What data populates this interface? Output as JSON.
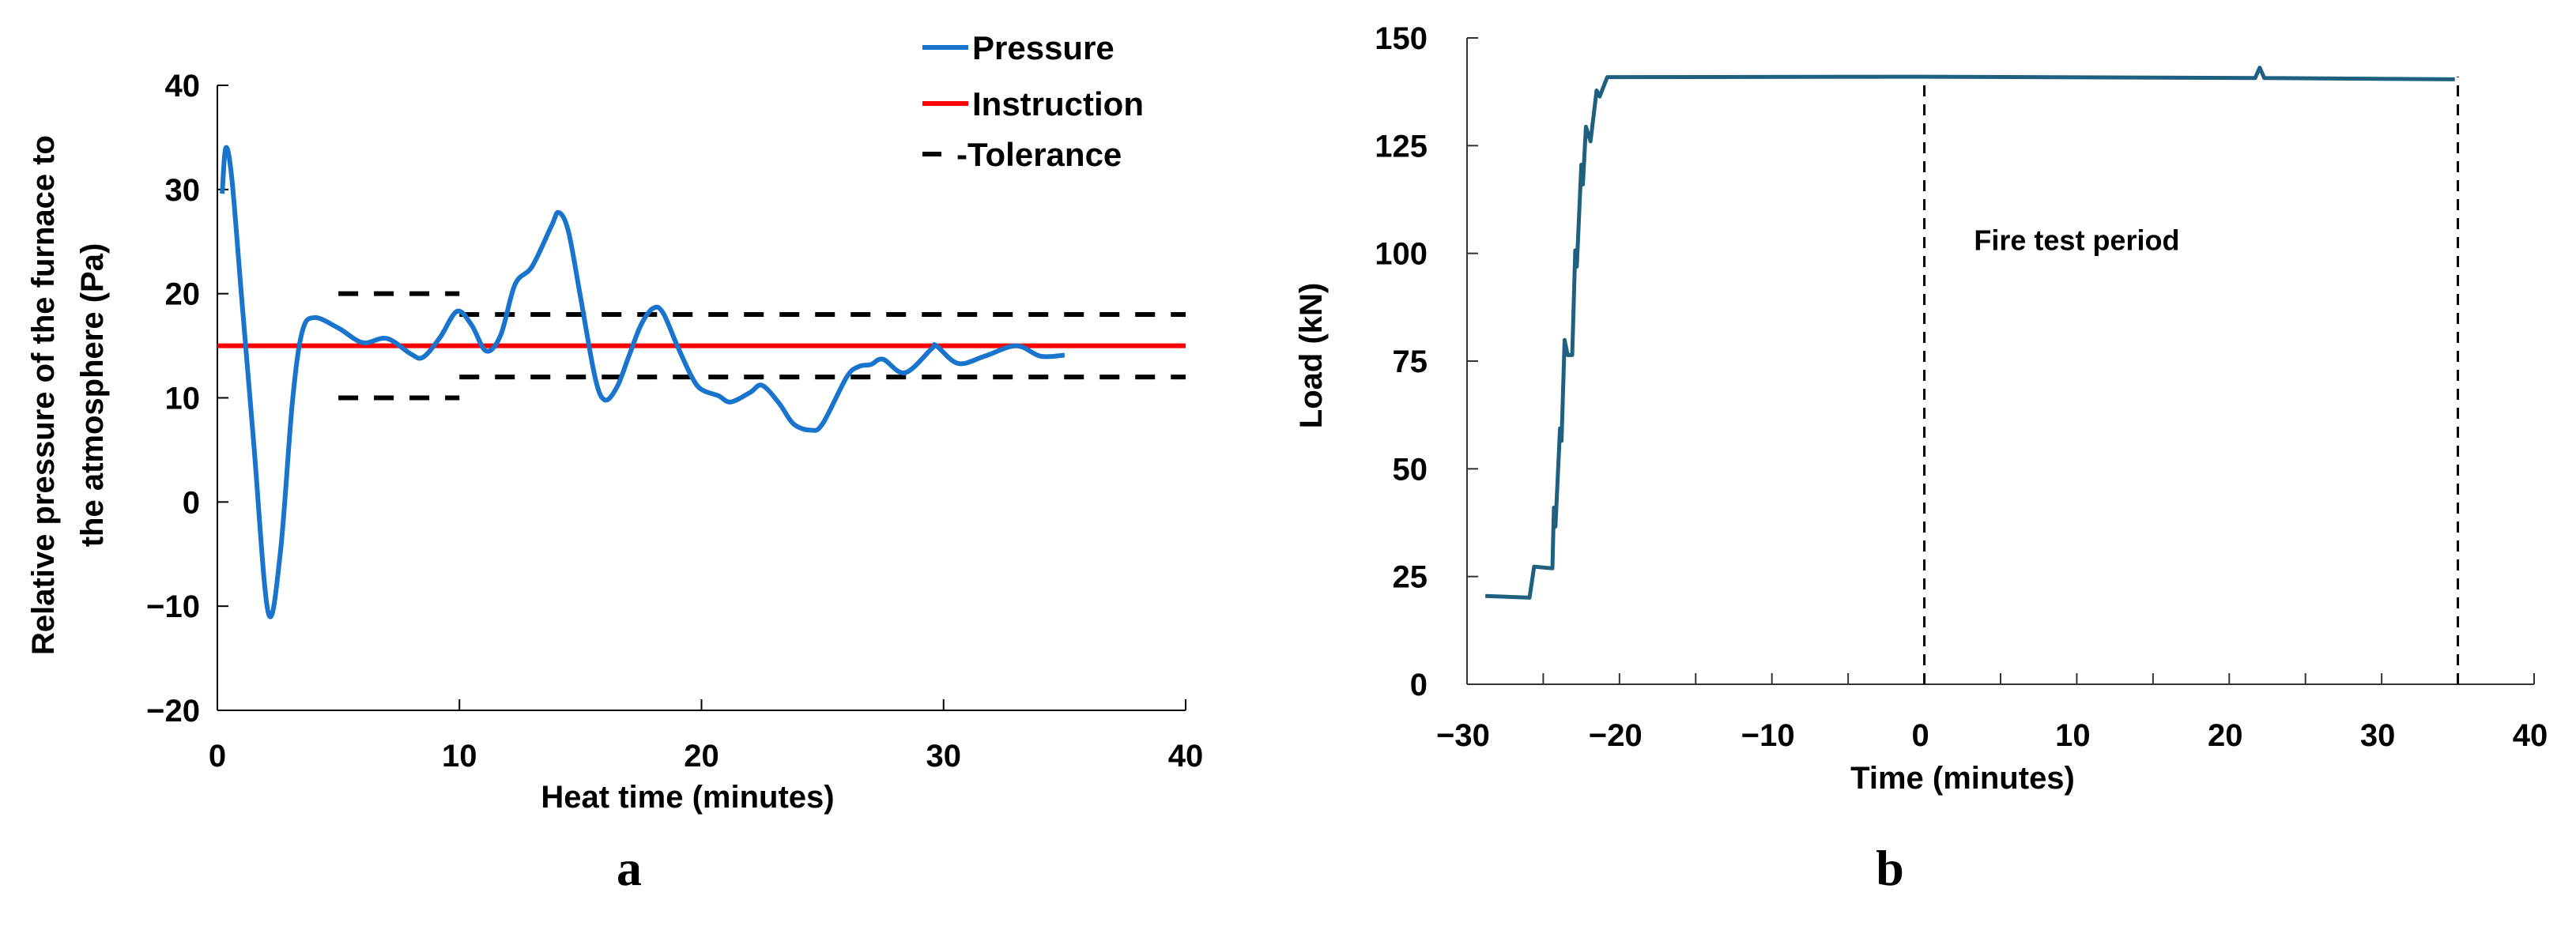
{
  "chart_data": [
    {
      "type": "line",
      "panel_label": "a",
      "xlabel": "Heat time (minutes)",
      "ylabel_lines": [
        "Relative pressure of the furnace to",
        "the atmosphere (Pa)"
      ],
      "xlim": [
        0,
        40
      ],
      "ylim": [
        -20,
        40
      ],
      "xticks": [
        0,
        10,
        20,
        30,
        40
      ],
      "yticks": [
        -20,
        -10,
        0,
        10,
        20,
        30,
        40
      ],
      "grid": false,
      "legend_position": "top-right",
      "series": [
        {
          "name": "Pressure",
          "color": "#1874CD",
          "style": "solid",
          "x": [
            0.2,
            0.35,
            0.6,
            1.0,
            1.5,
            2.1,
            2.6,
            3.1,
            3.5,
            4.0,
            5.0,
            6.0,
            7.0,
            8.0,
            8.5,
            9.2,
            9.9,
            10.5,
            11.1,
            11.7,
            12.3,
            13.0,
            13.8,
            14.1,
            14.5,
            15.0,
            15.6,
            16.0,
            16.5,
            17.0,
            17.5,
            18.0,
            18.4,
            19.0,
            19.6,
            20.0,
            20.7,
            21.2,
            22.0,
            22.5,
            23.2,
            23.8,
            24.5,
            25.0,
            26.0,
            26.5,
            27.0,
            27.5,
            28.4,
            29.5,
            29.7,
            30.6,
            31.7,
            33.0,
            34.0,
            35.0
          ],
          "y": [
            29.6,
            34.0,
            31.0,
            19.7,
            5.7,
            -10.6,
            -4.9,
            9.6,
            16.3,
            17.7,
            16.7,
            15.3,
            15.7,
            14.2,
            13.9,
            15.8,
            18.3,
            17.0,
            14.5,
            16.0,
            20.9,
            22.6,
            26.5,
            27.8,
            26.0,
            19.7,
            12.0,
            9.8,
            11.0,
            14.0,
            17.0,
            18.6,
            18.2,
            15.0,
            12.0,
            10.8,
            10.2,
            9.6,
            10.5,
            11.2,
            9.5,
            7.5,
            6.9,
            7.5,
            12.0,
            13.0,
            13.2,
            13.7,
            12.4,
            14.7,
            15.0,
            13.3,
            14.0,
            15.0,
            14.0,
            14.1
          ]
        },
        {
          "name": "Instruction",
          "color": "#FF0000",
          "style": "solid",
          "x": [
            0,
            40
          ],
          "y": [
            15,
            15
          ]
        },
        {
          "name": "-Tolerance",
          "color": "#000000",
          "style": "dashed",
          "segments": [
            {
              "x": [
                5,
                10
              ],
              "y": [
                20,
                20
              ]
            },
            {
              "x": [
                5,
                10
              ],
              "y": [
                10,
                10
              ]
            },
            {
              "x": [
                10,
                40
              ],
              "y": [
                18,
                18
              ]
            },
            {
              "x": [
                10,
                40
              ],
              "y": [
                12,
                12
              ]
            }
          ]
        }
      ]
    },
    {
      "type": "line",
      "panel_label": "b",
      "xlabel": "Time (minutes)",
      "ylabel": "Load (kN)",
      "xlim": [
        -30,
        40
      ],
      "ylim": [
        0,
        150
      ],
      "xticks": [
        -30,
        -20,
        -10,
        0,
        10,
        20,
        30,
        40
      ],
      "xminor_step": 5,
      "yticks": [
        0,
        25,
        50,
        75,
        100,
        125,
        150
      ],
      "grid": false,
      "annotation": {
        "text": "Fire test period",
        "x": 10,
        "y": 103
      },
      "vlines": [
        0,
        35
      ],
      "series": [
        {
          "color": "#1F5F80",
          "style": "solid",
          "x": [
            -28.8,
            -25.9,
            -25.6,
            -24.4,
            -24.3,
            -24.2,
            -23.9,
            -23.8,
            -23.6,
            -23.4,
            -23.1,
            -22.9,
            -22.8,
            -22.5,
            -22.4,
            -22.2,
            -21.9,
            -21.5,
            -21.3,
            -20.8,
            0.0,
            21.7,
            22.0,
            22.3,
            34.8
          ],
          "y": [
            20.5,
            20.1,
            27.3,
            26.9,
            41.0,
            36.6,
            59.4,
            56.5,
            79.9,
            76.4,
            76.4,
            100.7,
            96.9,
            120.6,
            116.0,
            129.4,
            126.0,
            137.8,
            136.4,
            140.9,
            141.0,
            140.7,
            143.1,
            140.7,
            140.4
          ]
        }
      ]
    }
  ]
}
